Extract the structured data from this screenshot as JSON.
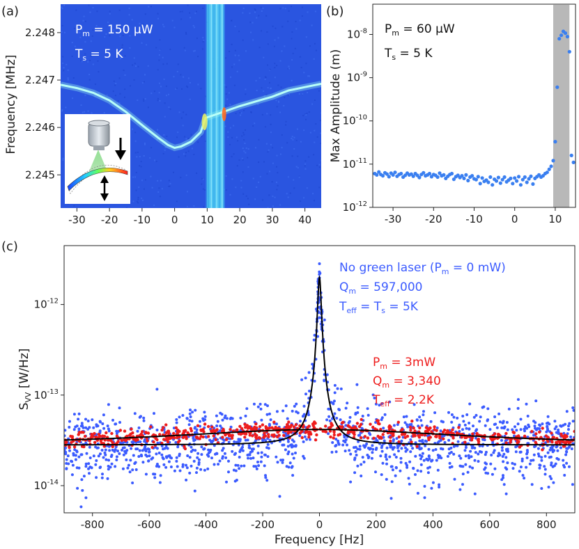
{
  "figure": {
    "panel_labels": [
      "(a)",
      "(b)",
      "(c)"
    ]
  },
  "colors": {
    "spectrogram_bg": "#2a55e0",
    "ridge": "#7ff0e6",
    "blue_points": "#3b5bff",
    "red_points": "#ee1c1c",
    "fit_line": "#000000",
    "shaded_region": "#b8b8b8"
  },
  "chart_data": [
    {
      "id": "a",
      "type": "heatmap",
      "title": "",
      "xlabel": "",
      "ylabel": "Frequency [MHz]",
      "xlim": [
        -35,
        45
      ],
      "ylim": [
        2.2443,
        2.2486
      ],
      "xticks": [
        -30,
        -20,
        -10,
        0,
        10,
        20,
        30,
        40
      ],
      "yticks": [
        2.245,
        2.246,
        2.247,
        2.248
      ],
      "ytick_labels": [
        "2.245",
        "2.246",
        "2.247",
        "2.248"
      ],
      "annotations": {
        "power": "P_m = 150 μW",
        "power_main": "P",
        "power_sub": "m",
        "power_val": " = 150 μW",
        "temp_main": "T",
        "temp_sub": "s",
        "temp_val": " = 5 K"
      },
      "ridge": {
        "x": [
          -35,
          -30,
          -25,
          -20,
          -15,
          -10,
          -5,
          -2,
          0,
          2,
          5,
          8,
          9.5,
          15,
          20,
          25,
          30,
          35,
          40,
          45
        ],
        "y": [
          2.2469,
          2.24683,
          2.24673,
          2.24657,
          2.24633,
          2.24605,
          2.24578,
          2.24563,
          2.24557,
          2.2456,
          2.2457,
          2.2459,
          2.2462,
          2.24633,
          2.24645,
          2.24655,
          2.24665,
          2.24678,
          2.24685,
          2.24692
        ]
      },
      "bright_band_x": [
        10,
        15
      ]
    },
    {
      "id": "b",
      "type": "scatter",
      "title": "",
      "xlabel": "",
      "ylabel": "Max Amplitude (m)",
      "yscale": "log",
      "xlim": [
        -35,
        15
      ],
      "ylim_exp": [
        -12,
        -7.3
      ],
      "xticks": [
        -30,
        -20,
        -10,
        0,
        10
      ],
      "yticks_exp": [
        -12,
        -11,
        -10,
        -9,
        -8
      ],
      "ytick_base": "10",
      "shaded_x": [
        9.5,
        13.5
      ],
      "annotations": {
        "power_main": "P",
        "power_sub": "m",
        "power_val": " = 60 μW",
        "temp_main": "T",
        "temp_sub": "s",
        "temp_val": " = 5 K"
      },
      "points": {
        "x": [
          -34.5,
          -34,
          -33.5,
          -33,
          -32.5,
          -32,
          -31.5,
          -31,
          -30.5,
          -30,
          -29.5,
          -29,
          -28.5,
          -28,
          -27.5,
          -27,
          -26.5,
          -26,
          -25.5,
          -25,
          -24.5,
          -24,
          -23.5,
          -23,
          -22.5,
          -22,
          -21.5,
          -21,
          -20.5,
          -20,
          -19.5,
          -19,
          -18.5,
          -18,
          -17.5,
          -17,
          -16.5,
          -16,
          -15.5,
          -15,
          -14.5,
          -14,
          -13.5,
          -13,
          -12.5,
          -12,
          -11.5,
          -11,
          -10.5,
          -10,
          -9.5,
          -9,
          -8.5,
          -8,
          -7.5,
          -7,
          -6.5,
          -6,
          -5.5,
          -5,
          -4.5,
          -4,
          -3.5,
          -3,
          -2.5,
          -2,
          -1.5,
          -1,
          -0.5,
          0,
          0.5,
          1,
          1.5,
          2,
          2.5,
          3,
          3.5,
          4,
          4.5,
          5,
          5.5,
          6,
          6.5,
          7,
          7.5,
          8,
          8.5,
          9,
          9.5,
          10,
          10.5,
          11,
          11.5,
          12,
          12.5,
          13,
          13.5,
          14,
          14.5
        ],
        "y_exp": [
          -11.22,
          -11.25,
          -11.18,
          -11.24,
          -11.27,
          -11.2,
          -11.23,
          -11.29,
          -11.21,
          -11.25,
          -11.19,
          -11.28,
          -11.24,
          -11.22,
          -11.3,
          -11.26,
          -11.21,
          -11.25,
          -11.23,
          -11.28,
          -11.22,
          -11.26,
          -11.31,
          -11.24,
          -11.2,
          -11.27,
          -11.25,
          -11.22,
          -11.29,
          -11.24,
          -11.26,
          -11.3,
          -11.21,
          -11.27,
          -11.25,
          -11.33,
          -11.28,
          -11.24,
          -11.22,
          -11.35,
          -11.29,
          -11.26,
          -11.31,
          -11.27,
          -11.33,
          -11.25,
          -11.38,
          -11.3,
          -11.27,
          -11.34,
          -11.36,
          -11.29,
          -11.45,
          -11.32,
          -11.4,
          -11.37,
          -11.42,
          -11.3,
          -11.48,
          -11.35,
          -11.39,
          -11.31,
          -11.44,
          -11.36,
          -11.3,
          -11.41,
          -11.37,
          -11.33,
          -11.45,
          -11.32,
          -11.39,
          -11.29,
          -11.48,
          -11.36,
          -11.3,
          -11.42,
          -11.34,
          -11.28,
          -11.46,
          -11.33,
          -11.29,
          -11.25,
          -11.3,
          -11.27,
          -11.22,
          -11.19,
          -11.12,
          -11.05,
          -10.92,
          -10.48,
          -9.22,
          -8.1,
          -8.02,
          -7.93,
          -7.97,
          -8.05,
          -8.4,
          -10.8,
          -10.96
        ]
      }
    },
    {
      "id": "c",
      "type": "scatter",
      "title": "",
      "xlabel": "Frequency [Hz]",
      "ylabel": "S_VV [W/Hz]",
      "ylabel_main": "S",
      "ylabel_sub": "VV",
      "ylabel_unit": " [W/Hz]",
      "yscale": "log",
      "xlim": [
        -900,
        900
      ],
      "ylim_exp": [
        -14.3,
        -11.35
      ],
      "xticks": [
        -800,
        -600,
        -400,
        -200,
        0,
        200,
        400,
        600,
        800
      ],
      "yticks_exp": [
        -14,
        -13,
        -12
      ],
      "ytick_base": "10",
      "series": [
        {
          "name": "No green laser (P_m = 0 mW)",
          "color": "#3b5bff",
          "label_lines": [
            {
              "main": "No green laser (P",
              "sub": "m",
              "rest": " = 0 mW)"
            },
            {
              "main": "Q",
              "sub": "m",
              "rest": " = 597,000"
            },
            {
              "main": "T",
              "sub": "eff",
              "rest": " = T",
              "sub2": "s",
              "rest2": " = 5K"
            }
          ],
          "Q": 597000,
          "T_eff_K": 5,
          "P_mW": 0,
          "fit": {
            "baseline_exp": -13.55,
            "peak_exp": -11.7,
            "linewidth_hz": 6
          }
        },
        {
          "name": "P_m = 3mW",
          "color": "#ee1c1c",
          "label_lines": [
            {
              "main": "P",
              "sub": "m",
              "rest": " = 3mW"
            },
            {
              "main": "Q",
              "sub": "m",
              "rest": " = 3,340"
            },
            {
              "main": "T",
              "sub": "eff",
              "rest": " = 2.2K"
            }
          ],
          "Q": 3340,
          "T_eff_K": 2.2,
          "P_mW": 3,
          "fit": {
            "baseline_exp": -13.56,
            "peak_exp": -13.38,
            "linewidth_hz": 600
          }
        }
      ]
    }
  ]
}
